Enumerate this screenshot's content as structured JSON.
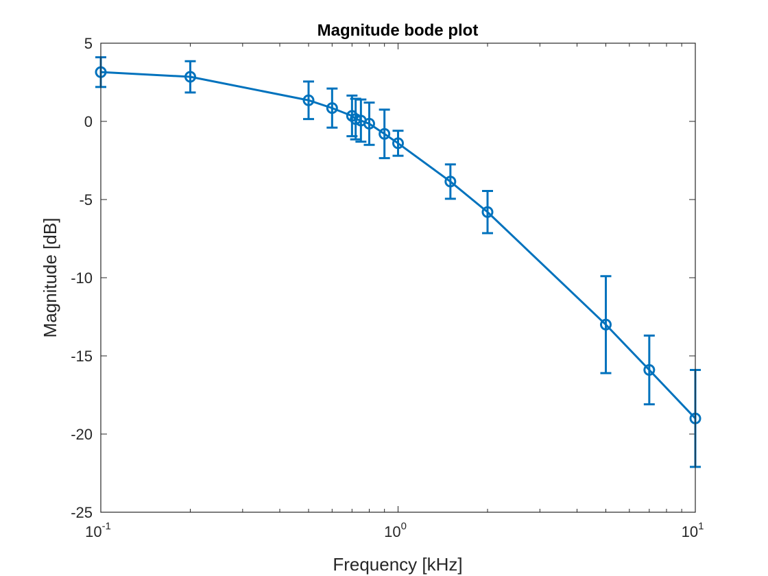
{
  "chart_data": {
    "type": "line",
    "title": "Magnitude bode plot",
    "xlabel": "Frequency [kHz]",
    "ylabel": "Magnitude [dB]",
    "xscale": "log",
    "xlim": [
      0.1,
      10
    ],
    "ylim": [
      -25,
      5
    ],
    "grid": false,
    "legend": "none",
    "series_color": "#0072BD",
    "x_ticks": [
      {
        "value": 0.1,
        "base": "10",
        "exp": "-1"
      },
      {
        "value": 1,
        "base": "10",
        "exp": "0"
      },
      {
        "value": 10,
        "base": "10",
        "exp": "1"
      }
    ],
    "y_ticks": [
      {
        "value": 5,
        "label": "5"
      },
      {
        "value": 0,
        "label": "0"
      },
      {
        "value": -5,
        "label": "-5"
      },
      {
        "value": -10,
        "label": "-10"
      },
      {
        "value": -15,
        "label": "-15"
      },
      {
        "value": -20,
        "label": "-20"
      },
      {
        "value": -25,
        "label": "-25"
      }
    ],
    "series": [
      {
        "x": [
          0.1,
          0.2,
          0.5,
          0.6,
          0.7,
          0.72,
          0.75,
          0.8,
          0.9,
          1.0,
          1.5,
          2.0,
          5.0,
          7.0,
          10.0
        ],
        "y": [
          3.15,
          2.85,
          1.35,
          0.85,
          0.35,
          0.15,
          0.05,
          -0.15,
          -0.8,
          -1.4,
          -3.85,
          -5.8,
          -13.0,
          -15.9,
          -19.0
        ],
        "error": [
          0.95,
          1.0,
          1.2,
          1.25,
          1.3,
          1.3,
          1.35,
          1.35,
          1.55,
          0.8,
          1.1,
          1.35,
          3.1,
          2.2,
          3.1
        ]
      }
    ]
  }
}
